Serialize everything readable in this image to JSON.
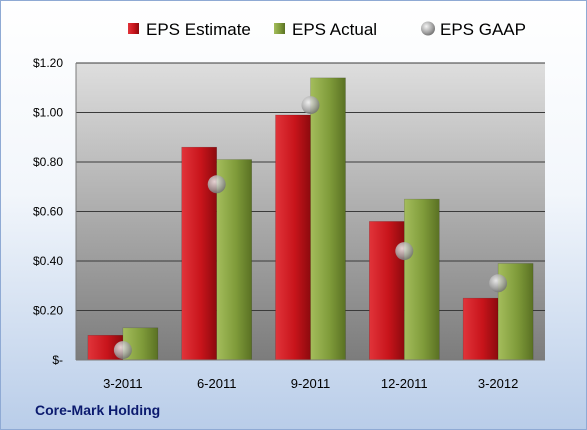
{
  "company": "Core-Mark Holding",
  "chart_data": {
    "type": "bar",
    "categories": [
      "3-2011",
      "6-2011",
      "9-2011",
      "12-2011",
      "3-2012"
    ],
    "series": [
      {
        "name": "EPS Estimate",
        "type": "bar",
        "color": "#c8141b",
        "values": [
          0.1,
          0.86,
          0.99,
          0.56,
          0.25
        ]
      },
      {
        "name": "EPS Actual",
        "type": "bar",
        "color": "#7f9b3a",
        "values": [
          0.13,
          0.81,
          1.14,
          0.65,
          0.39
        ]
      },
      {
        "name": "EPS GAAP",
        "type": "scatter",
        "color": "#9a9a9a",
        "values": [
          0.04,
          0.71,
          1.03,
          0.44,
          0.31
        ]
      }
    ],
    "yticks": [
      {
        "value": 0,
        "label": "$-"
      },
      {
        "value": 0.2,
        "label": "$0.20"
      },
      {
        "value": 0.4,
        "label": "$0.40"
      },
      {
        "value": 0.6,
        "label": "$0.60"
      },
      {
        "value": 0.8,
        "label": "$0.80"
      },
      {
        "value": 1.0,
        "label": "$1.00"
      },
      {
        "value": 1.2,
        "label": "$1.20"
      }
    ],
    "ylim": [
      0,
      1.2
    ],
    "grid": true,
    "legend_position": "top"
  }
}
